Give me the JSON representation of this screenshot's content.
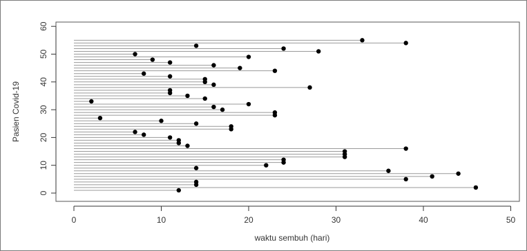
{
  "chart_data": {
    "type": "scatter",
    "title": "",
    "xlabel": "waktu sembuh (hari)",
    "ylabel": "Pasien Covid-19",
    "xlim": [
      0,
      50
    ],
    "ylim": [
      0,
      60
    ],
    "xticks": [
      "0",
      "10",
      "20",
      "30",
      "40",
      "50"
    ],
    "yticks": [
      "0",
      "10",
      "20",
      "30",
      "40",
      "50",
      "60"
    ],
    "grid": false,
    "legend": "none",
    "segment_start_x": 0,
    "series": [
      {
        "y": [
          1,
          2,
          3,
          4,
          5,
          6,
          7,
          8,
          9,
          10,
          11,
          12,
          13,
          14,
          15,
          16,
          17,
          18,
          19,
          20,
          21,
          22,
          23,
          24,
          25,
          26,
          27,
          28,
          29,
          30,
          31,
          32,
          33,
          34,
          35,
          36,
          37,
          38,
          39,
          40,
          41,
          42,
          43,
          44,
          45,
          46,
          47,
          48,
          49,
          50,
          51,
          52,
          53,
          54,
          55
        ],
        "x": [
          12,
          46,
          14,
          14,
          38,
          41,
          44,
          36,
          14,
          22,
          24,
          24,
          31,
          31,
          31,
          38,
          13,
          12,
          12,
          11,
          8,
          7,
          18,
          18,
          14,
          10,
          3,
          23,
          23,
          17,
          16,
          20,
          2,
          15,
          13,
          11,
          11,
          27,
          16,
          15,
          15,
          11,
          8,
          23,
          19,
          16,
          11,
          9,
          20,
          7,
          28,
          24,
          14,
          38,
          33
        ]
      }
    ],
    "colors": {
      "segment": "#999999",
      "point": "#000000",
      "axis": "#333333",
      "box": "#555555"
    }
  }
}
